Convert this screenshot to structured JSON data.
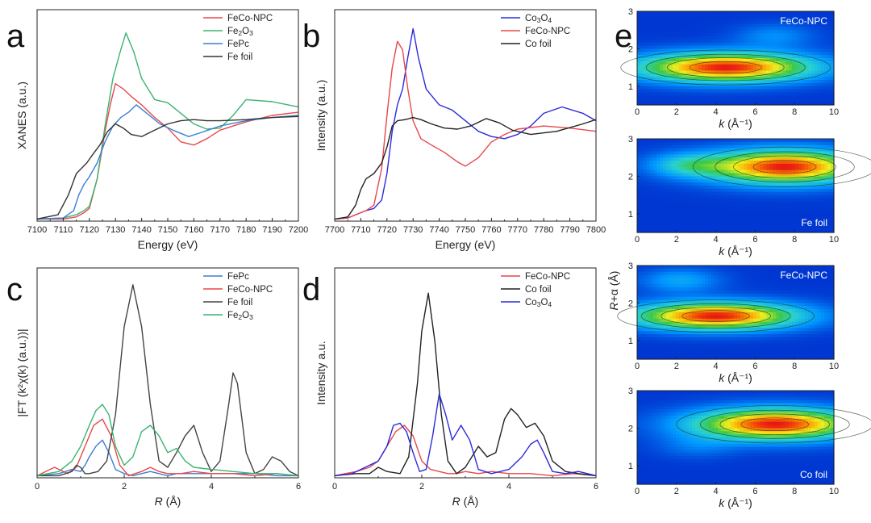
{
  "chart_data": [
    {
      "id": "a",
      "panel_label": "a",
      "type": "line",
      "xlabel": "Energy (eV)",
      "ylabel": "XANES (a.u.)",
      "xlim": [
        7100,
        7200
      ],
      "ylim": [
        0,
        2.0
      ],
      "xticks": [
        "7100",
        "7110",
        "7120",
        "7130",
        "7140",
        "7150",
        "7160",
        "7170",
        "7180",
        "7190",
        "7200"
      ],
      "legend": "top-right",
      "series": [
        {
          "name": "FeCo-NPC",
          "color": "#e8474a",
          "x": [
            7100,
            7110,
            7115,
            7118,
            7120,
            7123,
            7126,
            7128,
            7130,
            7133,
            7136,
            7140,
            7145,
            7150,
            7155,
            7160,
            7165,
            7170,
            7180,
            7190,
            7200
          ],
          "y": [
            0.02,
            0.02,
            0.04,
            0.08,
            0.12,
            0.4,
            0.85,
            1.1,
            1.3,
            1.25,
            1.18,
            1.1,
            0.98,
            0.88,
            0.75,
            0.72,
            0.78,
            0.86,
            0.94,
            1.0,
            1.03
          ]
        },
        {
          "name": "Fe2O3",
          "name_sub": "2",
          "name_sub2": "3",
          "color": "#3cb371",
          "x": [
            7100,
            7110,
            7115,
            7118,
            7120,
            7123,
            7126,
            7129,
            7132,
            7134,
            7137,
            7140,
            7145,
            7150,
            7155,
            7160,
            7165,
            7170,
            7175,
            7180,
            7190,
            7200
          ],
          "y": [
            0.02,
            0.03,
            0.06,
            0.1,
            0.14,
            0.4,
            0.9,
            1.35,
            1.62,
            1.78,
            1.6,
            1.35,
            1.15,
            1.12,
            1.02,
            0.92,
            0.87,
            0.88,
            1.0,
            1.15,
            1.13,
            1.08
          ]
        },
        {
          "name": "FePc",
          "color": "#3a7fd5",
          "x": [
            7100,
            7110,
            7114,
            7116,
            7118,
            7120,
            7123,
            7126,
            7129,
            7132,
            7135,
            7138,
            7142,
            7147,
            7152,
            7158,
            7163,
            7170,
            7180,
            7190,
            7200
          ],
          "y": [
            0.02,
            0.03,
            0.1,
            0.25,
            0.35,
            0.42,
            0.55,
            0.75,
            0.9,
            0.98,
            1.03,
            1.1,
            1.02,
            0.92,
            0.86,
            0.8,
            0.84,
            0.9,
            0.95,
            0.98,
            1.0
          ]
        },
        {
          "name": "Fe foil",
          "color": "#333333",
          "x": [
            7100,
            7108,
            7112,
            7115,
            7117,
            7119,
            7121,
            7124,
            7127,
            7130,
            7133,
            7136,
            7140,
            7145,
            7150,
            7155,
            7160,
            7165,
            7170,
            7180,
            7190,
            7200
          ],
          "y": [
            0.02,
            0.06,
            0.25,
            0.45,
            0.5,
            0.55,
            0.62,
            0.72,
            0.85,
            0.92,
            0.88,
            0.82,
            0.8,
            0.86,
            0.92,
            0.95,
            0.96,
            0.95,
            0.95,
            0.96,
            0.98,
            0.99
          ]
        }
      ]
    },
    {
      "id": "b",
      "panel_label": "b",
      "type": "line",
      "xlabel": "Energy (eV)",
      "ylabel": "Intensity (a.u.)",
      "xlim": [
        7700,
        7800
      ],
      "ylim": [
        0,
        2.0
      ],
      "xticks": [
        "7700",
        "7710",
        "7720",
        "7730",
        "7740",
        "7750",
        "7760",
        "7770",
        "7780",
        "7790",
        "7800"
      ],
      "legend": "top-right",
      "series": [
        {
          "name": "Co3O4",
          "name_sub": "3",
          "name_sub2": "4",
          "color": "#2b2bdc",
          "x": [
            7700,
            7705,
            7708,
            7712,
            7715,
            7718,
            7720,
            7722,
            7724,
            7726,
            7728,
            7730,
            7732,
            7735,
            7740,
            7745,
            7750,
            7755,
            7760,
            7765,
            7770,
            7775,
            7780,
            7787,
            7795,
            7800
          ],
          "y": [
            0.02,
            0.03,
            0.06,
            0.1,
            0.12,
            0.2,
            0.45,
            0.85,
            1.1,
            1.25,
            1.55,
            1.82,
            1.55,
            1.25,
            1.1,
            1.05,
            0.95,
            0.85,
            0.8,
            0.78,
            0.82,
            0.9,
            1.02,
            1.08,
            1.02,
            0.95
          ]
        },
        {
          "name": "FeCo-NPC",
          "color": "#e8474a",
          "x": [
            7700,
            7705,
            7708,
            7712,
            7715,
            7718,
            7720,
            7722,
            7724,
            7726,
            7728,
            7730,
            7733,
            7737,
            7742,
            7747,
            7750,
            7755,
            7760,
            7765,
            7770,
            7780,
            7790,
            7800
          ],
          "y": [
            0.02,
            0.03,
            0.06,
            0.1,
            0.15,
            0.5,
            1.0,
            1.45,
            1.7,
            1.62,
            1.25,
            0.95,
            0.78,
            0.72,
            0.65,
            0.56,
            0.52,
            0.6,
            0.75,
            0.82,
            0.87,
            0.9,
            0.88,
            0.85
          ]
        },
        {
          "name": "Co foil",
          "color": "#222222",
          "x": [
            7700,
            7705,
            7708,
            7710,
            7712,
            7715,
            7718,
            7720,
            7722,
            7724,
            7727,
            7730,
            7733,
            7737,
            7742,
            7747,
            7752,
            7758,
            7763,
            7768,
            7775,
            7785,
            7795,
            7800
          ],
          "y": [
            0.02,
            0.04,
            0.15,
            0.3,
            0.4,
            0.45,
            0.55,
            0.7,
            0.9,
            0.95,
            0.96,
            0.98,
            0.96,
            0.92,
            0.88,
            0.87,
            0.9,
            0.97,
            0.93,
            0.86,
            0.82,
            0.85,
            0.92,
            0.96
          ]
        }
      ]
    },
    {
      "id": "c",
      "panel_label": "c",
      "type": "line",
      "xlabel": "R (Å)",
      "xlabel_italic": "R",
      "xlabel_rest": " (Å)",
      "ylabel": "|FT (k²χ(k) (a.u.))|",
      "xlim": [
        0,
        6
      ],
      "ylim": [
        0,
        1.0
      ],
      "xticks": [
        "0",
        "2",
        "4",
        "6"
      ],
      "legend": "top-right",
      "series": [
        {
          "name": "FePc",
          "color": "#3a7fd5",
          "x": [
            0,
            0.5,
            0.8,
            1.0,
            1.1,
            1.2,
            1.35,
            1.5,
            1.65,
            1.8,
            2.0,
            2.2,
            2.4,
            2.6,
            2.8,
            3.0,
            3.2,
            3.5,
            4.0,
            4.5,
            5.0,
            5.5,
            6.0
          ],
          "y": [
            0.01,
            0.02,
            0.04,
            0.03,
            0.06,
            0.1,
            0.15,
            0.18,
            0.12,
            0.04,
            0.02,
            0.01,
            0.02,
            0.03,
            0.02,
            0.01,
            0.02,
            0.02,
            0.02,
            0.02,
            0.02,
            0.01,
            0.01
          ]
        },
        {
          "name": "FeCo-NPC",
          "color": "#e8474a",
          "x": [
            0,
            0.4,
            0.7,
            0.9,
            1.1,
            1.3,
            1.5,
            1.7,
            1.9,
            2.1,
            2.4,
            2.6,
            2.8,
            3.0,
            3.3,
            3.6,
            4.0,
            4.5,
            5.0,
            5.5,
            6.0
          ],
          "y": [
            0.01,
            0.05,
            0.02,
            0.05,
            0.15,
            0.25,
            0.28,
            0.2,
            0.06,
            0.01,
            0.03,
            0.05,
            0.03,
            0.02,
            0.02,
            0.03,
            0.02,
            0.02,
            0.01,
            0.02,
            0.01
          ]
        },
        {
          "name": "Fe foil",
          "color": "#444444",
          "x": [
            0,
            0.5,
            0.8,
            0.9,
            1.0,
            1.1,
            1.2,
            1.4,
            1.6,
            1.8,
            2.0,
            2.2,
            2.4,
            2.6,
            2.8,
            3.0,
            3.2,
            3.4,
            3.6,
            3.8,
            4.0,
            4.2,
            4.4,
            4.5,
            4.6,
            4.8,
            5.0,
            5.2,
            5.4,
            5.6,
            5.8,
            6.0
          ],
          "y": [
            0.01,
            0.01,
            0.03,
            0.06,
            0.05,
            0.02,
            0.02,
            0.03,
            0.08,
            0.3,
            0.72,
            0.92,
            0.72,
            0.35,
            0.08,
            0.05,
            0.12,
            0.2,
            0.25,
            0.12,
            0.03,
            0.08,
            0.35,
            0.5,
            0.45,
            0.12,
            0.02,
            0.04,
            0.1,
            0.08,
            0.03,
            0.01
          ]
        },
        {
          "name": "Fe2O3",
          "name_sub": "2",
          "name_sub2": "3",
          "color": "#3cb371",
          "x": [
            0,
            0.5,
            0.8,
            1.0,
            1.2,
            1.35,
            1.5,
            1.65,
            1.8,
            2.0,
            2.2,
            2.4,
            2.6,
            2.8,
            3.0,
            3.2,
            3.4,
            3.6,
            4.0,
            4.5,
            5.0,
            5.5,
            6.0
          ],
          "y": [
            0.01,
            0.03,
            0.08,
            0.15,
            0.25,
            0.32,
            0.35,
            0.3,
            0.15,
            0.06,
            0.1,
            0.22,
            0.25,
            0.2,
            0.12,
            0.14,
            0.08,
            0.05,
            0.04,
            0.03,
            0.02,
            0.02,
            0.01
          ]
        }
      ]
    },
    {
      "id": "d",
      "panel_label": "d",
      "type": "line",
      "xlabel": "R (Å)",
      "xlabel_italic": "R",
      "xlabel_rest": " (Å)",
      "ylabel": "Intensity a.u.",
      "xlim": [
        0,
        6
      ],
      "ylim": [
        0,
        1.0
      ],
      "xticks": [
        "0",
        "2",
        "4",
        "6"
      ],
      "legend": "top-right",
      "series": [
        {
          "name": "FeCo-NPC",
          "color": "#e8474a",
          "x": [
            0,
            0.5,
            0.8,
            1.0,
            1.2,
            1.4,
            1.6,
            1.8,
            2.0,
            2.2,
            2.4,
            2.6,
            2.8,
            3.0,
            3.3,
            3.6,
            4.0,
            4.5,
            5.0,
            5.5,
            6.0
          ],
          "y": [
            0.01,
            0.03,
            0.05,
            0.08,
            0.15,
            0.22,
            0.25,
            0.2,
            0.08,
            0.04,
            0.03,
            0.02,
            0.02,
            0.03,
            0.02,
            0.03,
            0.02,
            0.02,
            0.01,
            0.02,
            0.01
          ]
        },
        {
          "name": "Co foil",
          "color": "#222222",
          "x": [
            0,
            0.5,
            0.8,
            1.0,
            1.2,
            1.5,
            1.7,
            1.9,
            2.0,
            2.15,
            2.3,
            2.45,
            2.6,
            2.8,
            3.0,
            3.3,
            3.5,
            3.7,
            3.9,
            4.05,
            4.2,
            4.4,
            4.6,
            4.8,
            5.0,
            5.3,
            5.6,
            6.0
          ],
          "y": [
            0.01,
            0.02,
            0.02,
            0.05,
            0.03,
            0.02,
            0.1,
            0.45,
            0.7,
            0.88,
            0.65,
            0.3,
            0.08,
            0.02,
            0.05,
            0.15,
            0.1,
            0.12,
            0.28,
            0.33,
            0.3,
            0.24,
            0.26,
            0.2,
            0.08,
            0.03,
            0.02,
            0.01
          ]
        },
        {
          "name": "Co3O4",
          "name_sub": "3",
          "name_sub2": "4",
          "color": "#2b2bdc",
          "x": [
            0,
            0.4,
            0.7,
            1.0,
            1.2,
            1.35,
            1.5,
            1.65,
            1.8,
            1.95,
            2.1,
            2.25,
            2.4,
            2.55,
            2.7,
            2.9,
            3.1,
            3.3,
            3.6,
            4.0,
            4.3,
            4.5,
            4.65,
            4.8,
            5.0,
            5.3,
            5.6,
            6.0
          ],
          "y": [
            0.01,
            0.02,
            0.05,
            0.08,
            0.15,
            0.25,
            0.26,
            0.22,
            0.12,
            0.03,
            0.04,
            0.2,
            0.4,
            0.3,
            0.18,
            0.25,
            0.18,
            0.04,
            0.02,
            0.04,
            0.1,
            0.16,
            0.18,
            0.12,
            0.03,
            0.02,
            0.03,
            0.01
          ]
        }
      ]
    },
    {
      "id": "e",
      "panel_label": "e",
      "type": "heatmap",
      "xlabel_italic": "k",
      "xlabel_rest": " (Å⁻¹)",
      "xlabel": "k (Å⁻¹)",
      "ylabel": "R+α (Å)",
      "ylabel_italic": "R",
      "ylabel_rest": "+α (Å)",
      "xlim": [
        0,
        10
      ],
      "ylim": [
        0.5,
        3
      ],
      "xticks": [
        "0",
        "2",
        "4",
        "6",
        "8",
        "10"
      ],
      "yticks": [
        "1",
        "2",
        "3"
      ],
      "maps": [
        {
          "name": "FeCo-NPC",
          "name_pos": "top-right",
          "peak_k": 4.5,
          "peak_R": 1.5,
          "sigma_k": 3.2,
          "sigma_R": 0.28,
          "secondary": {
            "k": 7.0,
            "R": 2.35,
            "amp": 0.18
          }
        },
        {
          "name": "Fe foil",
          "name_pos": "bottom-right",
          "peak_k": 7.5,
          "peak_R": 2.25,
          "sigma_k": 2.8,
          "sigma_R": 0.32,
          "secondary": {
            "k": 2.5,
            "R": 2.3,
            "amp": 0.3
          }
        },
        {
          "name": "FeCo-NPC",
          "name_pos": "top-right",
          "peak_k": 4.0,
          "peak_R": 1.65,
          "sigma_k": 3.0,
          "sigma_R": 0.26,
          "secondary": {
            "k": 2.2,
            "R": 2.6,
            "amp": 0.25
          }
        },
        {
          "name": "Co foil",
          "name_pos": "bottom-right",
          "peak_k": 7.0,
          "peak_R": 2.1,
          "sigma_k": 3.0,
          "sigma_R": 0.3,
          "secondary": {
            "k": 3.0,
            "R": 1.5,
            "amp": 0.12
          }
        }
      ]
    }
  ]
}
